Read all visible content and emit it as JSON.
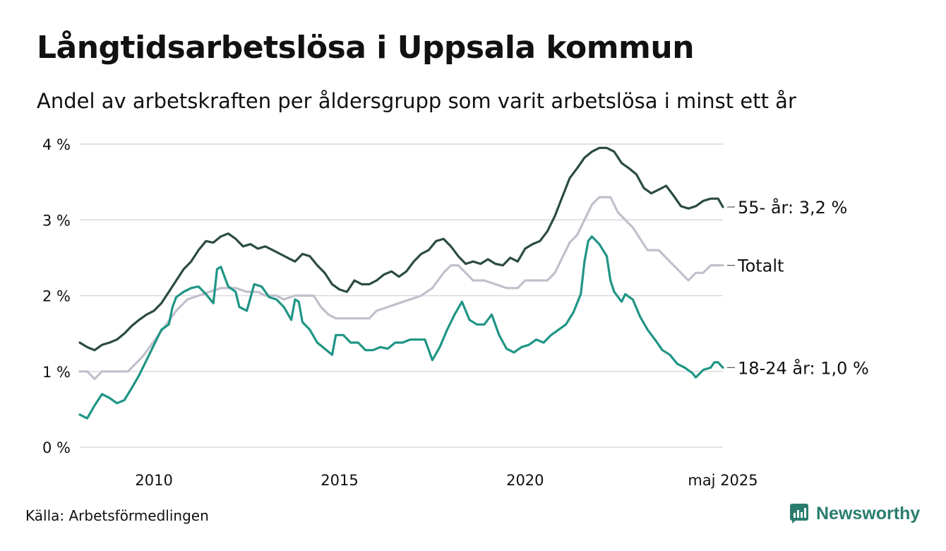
{
  "title": "Långtidsarbetslösa i Uppsala kommun",
  "subtitle": "Andel av arbetskraften per åldersgrupp som varit arbetslösa i minst ett år",
  "source": "Källa: Arbetsförmedlingen",
  "brand": "Newsworthy",
  "chart_data": {
    "type": "line",
    "title": "Långtidsarbetslösa i Uppsala kommun",
    "subtitle": "Andel av arbetskraften per åldersgrupp som varit arbetslösa i minst ett år",
    "xlim": [
      2008.0,
      2025.33
    ],
    "ylim": [
      0,
      4
    ],
    "y_ticks": [
      0,
      1,
      2,
      3,
      4
    ],
    "y_tick_labels": [
      "0 %",
      "1 %",
      "2 %",
      "3 %",
      "4 %"
    ],
    "x_ticks": [
      2010,
      2015,
      2020,
      2025.33
    ],
    "x_tick_labels": [
      "2010",
      "2015",
      "2020",
      "maj 2025"
    ],
    "grid": true,
    "legend": "direct labels at right end of lines",
    "series": [
      {
        "name": "Totalt",
        "label": "Totalt",
        "color": "#c2bfcc",
        "points": [
          [
            2008.0,
            1.0
          ],
          [
            2008.2,
            1.0
          ],
          [
            2008.4,
            0.9
          ],
          [
            2008.6,
            1.0
          ],
          [
            2009.0,
            1.0
          ],
          [
            2009.3,
            1.0
          ],
          [
            2009.5,
            1.1
          ],
          [
            2009.7,
            1.2
          ],
          [
            2010.0,
            1.4
          ],
          [
            2010.3,
            1.6
          ],
          [
            2010.6,
            1.8
          ],
          [
            2010.9,
            1.95
          ],
          [
            2011.2,
            2.0
          ],
          [
            2011.5,
            2.05
          ],
          [
            2011.8,
            2.1
          ],
          [
            2012.2,
            2.1
          ],
          [
            2012.5,
            2.05
          ],
          [
            2012.8,
            2.05
          ],
          [
            2013.0,
            2.0
          ],
          [
            2013.3,
            2.0
          ],
          [
            2013.5,
            1.95
          ],
          [
            2013.8,
            2.0
          ],
          [
            2014.0,
            2.0
          ],
          [
            2014.3,
            2.0
          ],
          [
            2014.5,
            1.85
          ],
          [
            2014.7,
            1.75
          ],
          [
            2014.9,
            1.7
          ],
          [
            2015.2,
            1.7
          ],
          [
            2015.5,
            1.7
          ],
          [
            2015.8,
            1.7
          ],
          [
            2016.0,
            1.8
          ],
          [
            2016.3,
            1.85
          ],
          [
            2016.6,
            1.9
          ],
          [
            2016.9,
            1.95
          ],
          [
            2017.2,
            2.0
          ],
          [
            2017.5,
            2.1
          ],
          [
            2017.8,
            2.3
          ],
          [
            2018.0,
            2.4
          ],
          [
            2018.2,
            2.4
          ],
          [
            2018.4,
            2.3
          ],
          [
            2018.6,
            2.2
          ],
          [
            2018.9,
            2.2
          ],
          [
            2019.2,
            2.15
          ],
          [
            2019.5,
            2.1
          ],
          [
            2019.8,
            2.1
          ],
          [
            2020.0,
            2.2
          ],
          [
            2020.3,
            2.2
          ],
          [
            2020.6,
            2.2
          ],
          [
            2020.8,
            2.3
          ],
          [
            2021.0,
            2.5
          ],
          [
            2021.2,
            2.7
          ],
          [
            2021.4,
            2.8
          ],
          [
            2021.6,
            3.0
          ],
          [
            2021.8,
            3.2
          ],
          [
            2022.0,
            3.3
          ],
          [
            2022.3,
            3.3
          ],
          [
            2022.5,
            3.1
          ],
          [
            2022.7,
            3.0
          ],
          [
            2022.9,
            2.9
          ],
          [
            2023.1,
            2.75
          ],
          [
            2023.3,
            2.6
          ],
          [
            2023.6,
            2.6
          ],
          [
            2023.8,
            2.5
          ],
          [
            2024.0,
            2.4
          ],
          [
            2024.2,
            2.3
          ],
          [
            2024.4,
            2.2
          ],
          [
            2024.6,
            2.3
          ],
          [
            2024.8,
            2.3
          ],
          [
            2025.0,
            2.4
          ],
          [
            2025.33,
            2.4
          ]
        ]
      },
      {
        "name": "55- år",
        "label": "55- år: 3,2 %",
        "color": "#2b4b43",
        "points": [
          [
            2008.0,
            1.38
          ],
          [
            2008.2,
            1.32
          ],
          [
            2008.4,
            1.28
          ],
          [
            2008.6,
            1.35
          ],
          [
            2008.8,
            1.38
          ],
          [
            2009.0,
            1.42
          ],
          [
            2009.2,
            1.5
          ],
          [
            2009.4,
            1.6
          ],
          [
            2009.6,
            1.68
          ],
          [
            2009.8,
            1.75
          ],
          [
            2010.0,
            1.8
          ],
          [
            2010.2,
            1.9
          ],
          [
            2010.4,
            2.05
          ],
          [
            2010.6,
            2.2
          ],
          [
            2010.8,
            2.35
          ],
          [
            2011.0,
            2.45
          ],
          [
            2011.2,
            2.6
          ],
          [
            2011.4,
            2.72
          ],
          [
            2011.6,
            2.7
          ],
          [
            2011.8,
            2.78
          ],
          [
            2012.0,
            2.82
          ],
          [
            2012.2,
            2.75
          ],
          [
            2012.4,
            2.65
          ],
          [
            2012.6,
            2.68
          ],
          [
            2012.8,
            2.62
          ],
          [
            2013.0,
            2.65
          ],
          [
            2013.2,
            2.6
          ],
          [
            2013.4,
            2.55
          ],
          [
            2013.6,
            2.5
          ],
          [
            2013.8,
            2.45
          ],
          [
            2014.0,
            2.55
          ],
          [
            2014.2,
            2.52
          ],
          [
            2014.4,
            2.4
          ],
          [
            2014.6,
            2.3
          ],
          [
            2014.8,
            2.15
          ],
          [
            2015.0,
            2.08
          ],
          [
            2015.2,
            2.05
          ],
          [
            2015.4,
            2.2
          ],
          [
            2015.6,
            2.15
          ],
          [
            2015.8,
            2.15
          ],
          [
            2016.0,
            2.2
          ],
          [
            2016.2,
            2.28
          ],
          [
            2016.4,
            2.32
          ],
          [
            2016.6,
            2.25
          ],
          [
            2016.8,
            2.32
          ],
          [
            2017.0,
            2.45
          ],
          [
            2017.2,
            2.55
          ],
          [
            2017.4,
            2.6
          ],
          [
            2017.6,
            2.72
          ],
          [
            2017.8,
            2.75
          ],
          [
            2018.0,
            2.65
          ],
          [
            2018.2,
            2.52
          ],
          [
            2018.4,
            2.42
          ],
          [
            2018.6,
            2.45
          ],
          [
            2018.8,
            2.42
          ],
          [
            2019.0,
            2.48
          ],
          [
            2019.2,
            2.42
          ],
          [
            2019.4,
            2.4
          ],
          [
            2019.6,
            2.5
          ],
          [
            2019.8,
            2.45
          ],
          [
            2020.0,
            2.62
          ],
          [
            2020.2,
            2.68
          ],
          [
            2020.4,
            2.72
          ],
          [
            2020.6,
            2.85
          ],
          [
            2020.8,
            3.05
          ],
          [
            2021.0,
            3.3
          ],
          [
            2021.2,
            3.55
          ],
          [
            2021.4,
            3.68
          ],
          [
            2021.6,
            3.82
          ],
          [
            2021.8,
            3.9
          ],
          [
            2022.0,
            3.95
          ],
          [
            2022.2,
            3.95
          ],
          [
            2022.4,
            3.9
          ],
          [
            2022.6,
            3.75
          ],
          [
            2022.8,
            3.68
          ],
          [
            2023.0,
            3.6
          ],
          [
            2023.2,
            3.42
          ],
          [
            2023.4,
            3.35
          ],
          [
            2023.6,
            3.4
          ],
          [
            2023.8,
            3.45
          ],
          [
            2024.0,
            3.32
          ],
          [
            2024.2,
            3.18
          ],
          [
            2024.4,
            3.15
          ],
          [
            2024.6,
            3.18
          ],
          [
            2024.8,
            3.25
          ],
          [
            2025.0,
            3.28
          ],
          [
            2025.2,
            3.28
          ],
          [
            2025.33,
            3.17
          ]
        ]
      },
      {
        "name": "18-24 år",
        "label": "18-24 år: 1,0 %",
        "color": "#1f9585",
        "points": [
          [
            2008.0,
            0.43
          ],
          [
            2008.2,
            0.38
          ],
          [
            2008.4,
            0.55
          ],
          [
            2008.6,
            0.7
          ],
          [
            2008.8,
            0.65
          ],
          [
            2009.0,
            0.58
          ],
          [
            2009.2,
            0.62
          ],
          [
            2009.4,
            0.78
          ],
          [
            2009.6,
            0.95
          ],
          [
            2009.8,
            1.15
          ],
          [
            2010.0,
            1.35
          ],
          [
            2010.2,
            1.55
          ],
          [
            2010.4,
            1.62
          ],
          [
            2010.5,
            1.85
          ],
          [
            2010.6,
            1.98
          ],
          [
            2010.8,
            2.05
          ],
          [
            2011.0,
            2.1
          ],
          [
            2011.2,
            2.12
          ],
          [
            2011.4,
            2.02
          ],
          [
            2011.6,
            1.9
          ],
          [
            2011.7,
            2.35
          ],
          [
            2011.8,
            2.38
          ],
          [
            2012.0,
            2.12
          ],
          [
            2012.2,
            2.05
          ],
          [
            2012.3,
            1.85
          ],
          [
            2012.5,
            1.8
          ],
          [
            2012.7,
            2.15
          ],
          [
            2012.9,
            2.12
          ],
          [
            2013.1,
            1.98
          ],
          [
            2013.3,
            1.95
          ],
          [
            2013.5,
            1.85
          ],
          [
            2013.7,
            1.68
          ],
          [
            2013.8,
            1.95
          ],
          [
            2013.9,
            1.92
          ],
          [
            2014.0,
            1.65
          ],
          [
            2014.2,
            1.55
          ],
          [
            2014.4,
            1.38
          ],
          [
            2014.6,
            1.3
          ],
          [
            2014.8,
            1.22
          ],
          [
            2014.9,
            1.48
          ],
          [
            2015.1,
            1.48
          ],
          [
            2015.3,
            1.38
          ],
          [
            2015.5,
            1.38
          ],
          [
            2015.7,
            1.28
          ],
          [
            2015.9,
            1.28
          ],
          [
            2016.1,
            1.32
          ],
          [
            2016.3,
            1.3
          ],
          [
            2016.5,
            1.38
          ],
          [
            2016.7,
            1.38
          ],
          [
            2016.9,
            1.42
          ],
          [
            2017.1,
            1.42
          ],
          [
            2017.3,
            1.42
          ],
          [
            2017.5,
            1.15
          ],
          [
            2017.7,
            1.32
          ],
          [
            2017.9,
            1.55
          ],
          [
            2018.1,
            1.75
          ],
          [
            2018.3,
            1.92
          ],
          [
            2018.5,
            1.68
          ],
          [
            2018.7,
            1.62
          ],
          [
            2018.9,
            1.62
          ],
          [
            2019.1,
            1.75
          ],
          [
            2019.3,
            1.48
          ],
          [
            2019.5,
            1.3
          ],
          [
            2019.7,
            1.25
          ],
          [
            2019.9,
            1.32
          ],
          [
            2020.1,
            1.35
          ],
          [
            2020.3,
            1.42
          ],
          [
            2020.5,
            1.38
          ],
          [
            2020.7,
            1.48
          ],
          [
            2020.9,
            1.55
          ],
          [
            2021.1,
            1.62
          ],
          [
            2021.3,
            1.78
          ],
          [
            2021.5,
            2.02
          ],
          [
            2021.6,
            2.45
          ],
          [
            2021.7,
            2.72
          ],
          [
            2021.8,
            2.78
          ],
          [
            2022.0,
            2.68
          ],
          [
            2022.2,
            2.52
          ],
          [
            2022.3,
            2.2
          ],
          [
            2022.4,
            2.05
          ],
          [
            2022.6,
            1.92
          ],
          [
            2022.7,
            2.02
          ],
          [
            2022.9,
            1.95
          ],
          [
            2023.1,
            1.72
          ],
          [
            2023.3,
            1.55
          ],
          [
            2023.5,
            1.42
          ],
          [
            2023.7,
            1.28
          ],
          [
            2023.9,
            1.22
          ],
          [
            2024.1,
            1.1
          ],
          [
            2024.3,
            1.05
          ],
          [
            2024.5,
            0.98
          ],
          [
            2024.6,
            0.92
          ],
          [
            2024.8,
            1.02
          ],
          [
            2025.0,
            1.05
          ],
          [
            2025.1,
            1.12
          ],
          [
            2025.2,
            1.12
          ],
          [
            2025.33,
            1.05
          ]
        ]
      }
    ]
  }
}
